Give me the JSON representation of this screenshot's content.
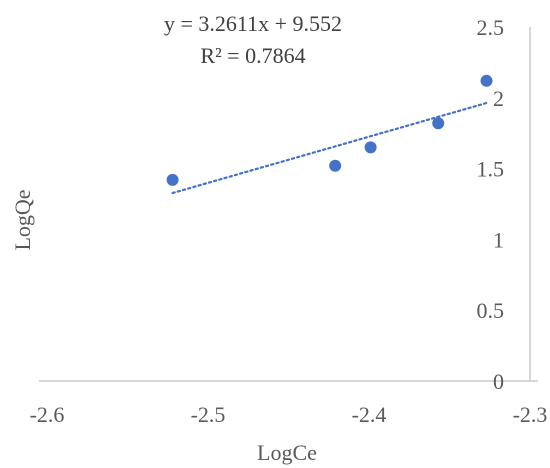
{
  "chart_data": {
    "type": "scatter",
    "title": "",
    "xlabel": "LogCe",
    "ylabel": "LogQe",
    "xlim": [
      -2.6,
      -2.3
    ],
    "ylim": [
      0,
      2.5
    ],
    "x_ticks": [
      "-2.6",
      "-2.5",
      "-2.4",
      "-2.3"
    ],
    "y_ticks": [
      "0",
      "0.5",
      "1",
      "1.5",
      "2",
      "2.5"
    ],
    "series": [
      {
        "points": [
          {
            "x": -2.522,
            "y": 1.42
          },
          {
            "x": -2.421,
            "y": 1.52
          },
          {
            "x": -2.399,
            "y": 1.65
          },
          {
            "x": -2.357,
            "y": 1.82
          },
          {
            "x": -2.327,
            "y": 2.12
          }
        ],
        "color": "#4472c4"
      }
    ],
    "trendline": {
      "type": "linear",
      "slope": 3.2611,
      "intercept": 9.552,
      "x_range": [
        -2.522,
        -2.327
      ],
      "color": "#4472c4",
      "style": "dotted"
    },
    "equation_text": "y = 3.2611x + 9.552",
    "r2_text": "R² = 0.7864",
    "grid": false,
    "y_axis_position": "right"
  }
}
